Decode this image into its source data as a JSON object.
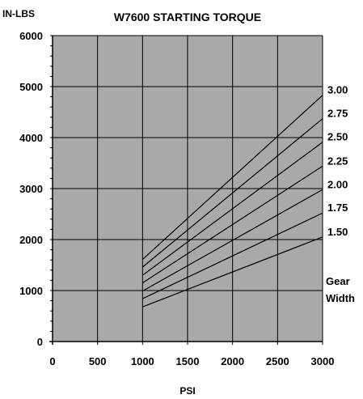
{
  "chart_data": {
    "type": "line",
    "title": "W7600 STARTING TORQUE",
    "ylabel": "IN-LBS",
    "xlabel": "PSI",
    "xlim": [
      0,
      3000
    ],
    "ylim": [
      0,
      6000
    ],
    "xticks": [
      0,
      500,
      1000,
      1500,
      2000,
      2500,
      3000
    ],
    "yticks": [
      0,
      1000,
      2000,
      3000,
      4000,
      5000,
      6000
    ],
    "grid": true,
    "plot_background": "#a9a9a9",
    "line_color": "#000000",
    "legend_title": [
      "Gear",
      "Width"
    ],
    "series": [
      {
        "name": "1.50",
        "x": [
          1000,
          3000
        ],
        "y": [
          680,
          2050
        ]
      },
      {
        "name": "1.75",
        "x": [
          1000,
          3000
        ],
        "y": [
          840,
          2520
        ]
      },
      {
        "name": "2.00",
        "x": [
          1000,
          3000
        ],
        "y": [
          990,
          2980
        ]
      },
      {
        "name": "2.25",
        "x": [
          1000,
          3000
        ],
        "y": [
          1150,
          3440
        ]
      },
      {
        "name": "2.50",
        "x": [
          1000,
          3000
        ],
        "y": [
          1300,
          3910
        ]
      },
      {
        "name": "2.75",
        "x": [
          1000,
          3000
        ],
        "y": [
          1460,
          4370
        ]
      },
      {
        "name": "3.00",
        "x": [
          1000,
          3000
        ],
        "y": [
          1610,
          4830
        ]
      }
    ]
  }
}
